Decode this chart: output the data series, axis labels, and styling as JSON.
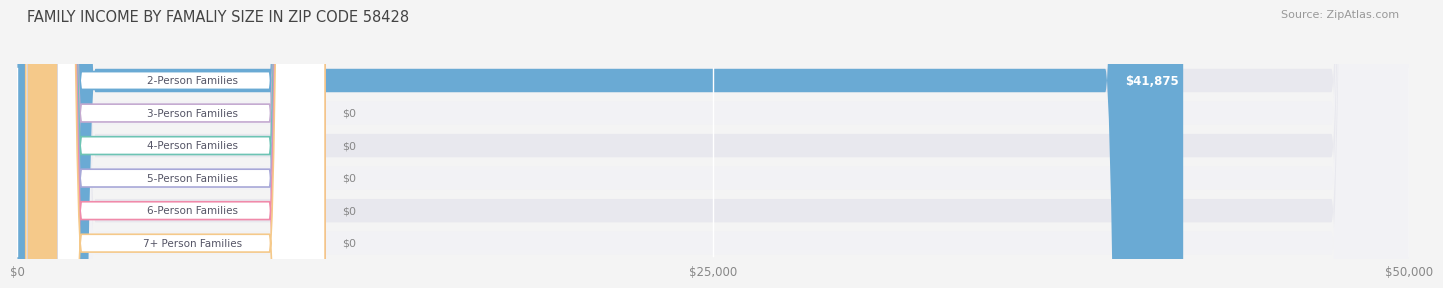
{
  "title": "FAMILY INCOME BY FAMALIY SIZE IN ZIP CODE 58428",
  "source": "Source: ZipAtlas.com",
  "categories": [
    "2-Person Families",
    "3-Person Families",
    "4-Person Families",
    "5-Person Families",
    "6-Person Families",
    "7+ Person Families"
  ],
  "values": [
    41875,
    0,
    0,
    0,
    0,
    0
  ],
  "bar_colors": [
    "#6aaad4",
    "#c4aad0",
    "#6dc4b4",
    "#a8a8d8",
    "#f08aaa",
    "#f5c98a"
  ],
  "xlim": [
    0,
    50000
  ],
  "xticks": [
    0,
    25000,
    50000
  ],
  "xticklabels": [
    "$0",
    "$25,000",
    "$50,000"
  ],
  "value_label_41875": "$41,875",
  "value_label_0": "$0",
  "bg_color": "#f4f4f4",
  "row_bg_light": "#f2f2f5",
  "row_bg_dark": "#e8e8ee",
  "title_fontsize": 10.5,
  "source_fontsize": 8
}
